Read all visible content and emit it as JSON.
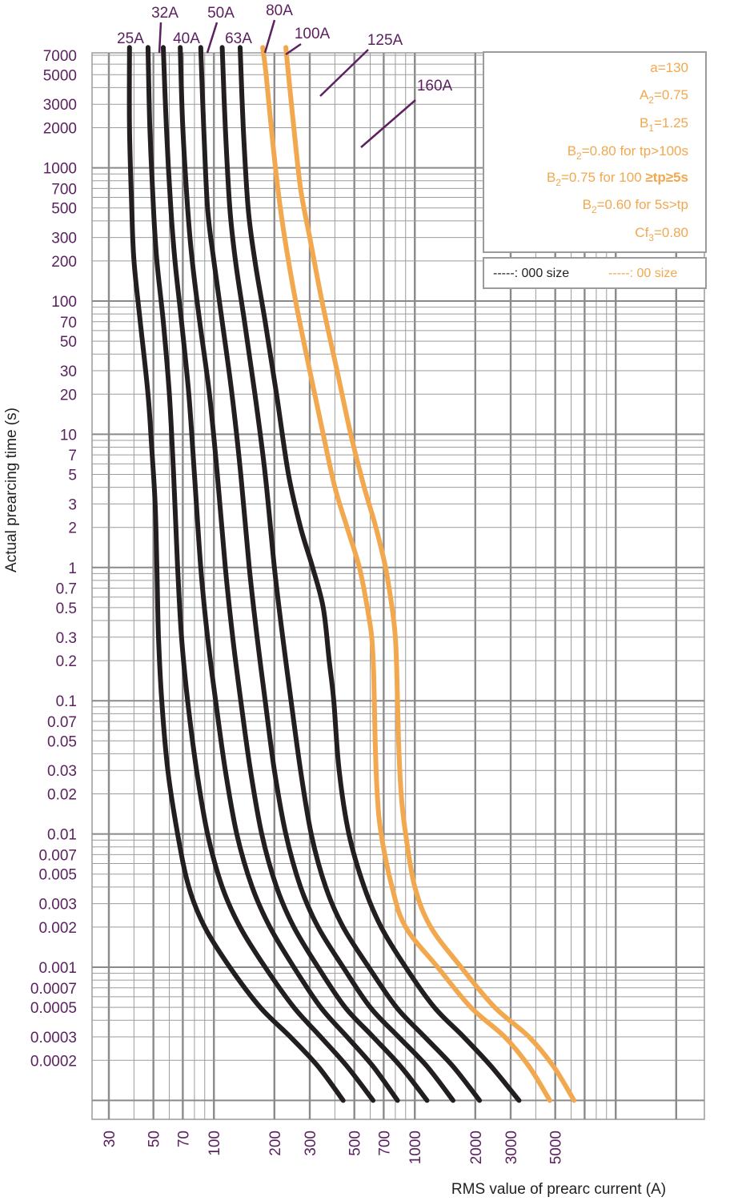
{
  "chart_data": {
    "type": "line",
    "xlabel": "RMS value of prearc current (A)",
    "ylabel": "Actual prearcing time (s)",
    "x_scale": "log",
    "y_scale": "log",
    "xlim": [
      25,
      7000
    ],
    "ylim": [
      0.0001,
      10000
    ],
    "grid": true,
    "x_ticks": [
      {
        "value": 30,
        "label": "30"
      },
      {
        "value": 50,
        "label": "50"
      },
      {
        "value": 70,
        "label": "70"
      },
      {
        "value": 100,
        "label": "100"
      },
      {
        "value": 200,
        "label": "200"
      },
      {
        "value": 300,
        "label": "300"
      },
      {
        "value": 500,
        "label": "500"
      },
      {
        "value": 700,
        "label": "700"
      },
      {
        "value": 1000,
        "label": "1000"
      },
      {
        "value": 2000,
        "label": "2000"
      },
      {
        "value": 3000,
        "label": "3000"
      },
      {
        "value": 5000,
        "label": "5000"
      }
    ],
    "y_ticks": [
      {
        "value": 7000,
        "label": "7000"
      },
      {
        "value": 5000,
        "label": "5000"
      },
      {
        "value": 3000,
        "label": "3000"
      },
      {
        "value": 2000,
        "label": "2000"
      },
      {
        "value": 1000,
        "label": "1000"
      },
      {
        "value": 700,
        "label": "700"
      },
      {
        "value": 500,
        "label": "500"
      },
      {
        "value": 300,
        "label": "300"
      },
      {
        "value": 200,
        "label": "200"
      },
      {
        "value": 100,
        "label": "100"
      },
      {
        "value": 70,
        "label": "70"
      },
      {
        "value": 50,
        "label": "50"
      },
      {
        "value": 30,
        "label": "30"
      },
      {
        "value": 20,
        "label": "20"
      },
      {
        "value": 10,
        "label": "10"
      },
      {
        "value": 7,
        "label": "7"
      },
      {
        "value": 5,
        "label": "5"
      },
      {
        "value": 3,
        "label": "3"
      },
      {
        "value": 2,
        "label": "2"
      },
      {
        "value": 1,
        "label": "1"
      },
      {
        "value": 0.7,
        "label": "0.7"
      },
      {
        "value": 0.5,
        "label": "0.5"
      },
      {
        "value": 0.3,
        "label": "0.3"
      },
      {
        "value": 0.2,
        "label": "0.2"
      },
      {
        "value": 0.1,
        "label": "0.1"
      },
      {
        "value": 0.07,
        "label": "0.07"
      },
      {
        "value": 0.05,
        "label": "0.05"
      },
      {
        "value": 0.03,
        "label": "0.03"
      },
      {
        "value": 0.02,
        "label": "0.02"
      },
      {
        "value": 0.01,
        "label": "0.01"
      },
      {
        "value": 0.007,
        "label": "0.007"
      },
      {
        "value": 0.005,
        "label": "0.005"
      },
      {
        "value": 0.003,
        "label": "0.003"
      },
      {
        "value": 0.002,
        "label": "0.002"
      },
      {
        "value": 0.001,
        "label": "0.001"
      },
      {
        "value": 0.0007,
        "label": "0.0007"
      },
      {
        "value": 0.0005,
        "label": "0.0005"
      },
      {
        "value": 0.0003,
        "label": "0.0003"
      },
      {
        "value": 0.0002,
        "label": "0.0002"
      }
    ],
    "series": [
      {
        "name": "25A",
        "group": "000",
        "color": "#231f20",
        "points": [
          [
            38,
            8000
          ],
          [
            38,
            2000
          ],
          [
            39,
            500
          ],
          [
            40,
            200
          ],
          [
            43,
            70
          ],
          [
            47,
            20
          ],
          [
            49,
            8
          ],
          [
            51,
            3
          ],
          [
            52,
            1
          ],
          [
            53,
            0.3
          ],
          [
            55,
            0.1
          ],
          [
            59,
            0.03
          ],
          [
            66,
            0.01
          ],
          [
            75,
            0.004
          ],
          [
            90,
            0.002
          ],
          [
            120,
            0.001
          ],
          [
            170,
            0.0005
          ],
          [
            240,
            0.0003
          ],
          [
            330,
            0.00018
          ],
          [
            440,
            0.0001
          ]
        ]
      },
      {
        "name": "32A",
        "group": "000",
        "color": "#231f20",
        "points": [
          [
            47,
            8000
          ],
          [
            48,
            2000
          ],
          [
            50,
            500
          ],
          [
            52,
            200
          ],
          [
            56,
            70
          ],
          [
            60,
            20
          ],
          [
            63,
            5
          ],
          [
            66,
            1
          ],
          [
            69,
            0.3
          ],
          [
            74,
            0.1
          ],
          [
            82,
            0.03
          ],
          [
            93,
            0.01
          ],
          [
            110,
            0.004
          ],
          [
            135,
            0.002
          ],
          [
            180,
            0.001
          ],
          [
            250,
            0.0005
          ],
          [
            340,
            0.0003
          ],
          [
            460,
            0.00018
          ],
          [
            620,
            0.0001
          ]
        ]
      },
      {
        "name": "40A",
        "group": "000",
        "color": "#231f20",
        "points": [
          [
            56,
            8000
          ],
          [
            58,
            2000
          ],
          [
            61,
            500
          ],
          [
            64,
            200
          ],
          [
            69,
            70
          ],
          [
            75,
            20
          ],
          [
            80,
            5
          ],
          [
            86,
            1
          ],
          [
            93,
            0.3
          ],
          [
            102,
            0.1
          ],
          [
            114,
            0.03
          ],
          [
            130,
            0.01
          ],
          [
            155,
            0.004
          ],
          [
            190,
            0.002
          ],
          [
            250,
            0.001
          ],
          [
            340,
            0.0005
          ],
          [
            460,
            0.0003
          ],
          [
            620,
            0.00018
          ],
          [
            820,
            0.0001
          ]
        ]
      },
      {
        "name": "50A",
        "group": "000",
        "color": "#231f20",
        "points": [
          [
            68,
            8000
          ],
          [
            70,
            2000
          ],
          [
            74,
            500
          ],
          [
            78,
            200
          ],
          [
            85,
            70
          ],
          [
            95,
            20
          ],
          [
            104,
            5
          ],
          [
            114,
            1
          ],
          [
            124,
            0.3
          ],
          [
            136,
            0.1
          ],
          [
            152,
            0.03
          ],
          [
            173,
            0.01
          ],
          [
            205,
            0.004
          ],
          [
            250,
            0.002
          ],
          [
            330,
            0.001
          ],
          [
            450,
            0.0005
          ],
          [
            620,
            0.0003
          ],
          [
            850,
            0.00018
          ],
          [
            1150,
            0.0001
          ]
        ]
      },
      {
        "name": "63A",
        "group": "000",
        "color": "#231f20",
        "points": [
          [
            86,
            8000
          ],
          [
            89,
            2000
          ],
          [
            93,
            500
          ],
          [
            100,
            200
          ],
          [
            110,
            70
          ],
          [
            123,
            20
          ],
          [
            136,
            5
          ],
          [
            150,
            1
          ],
          [
            164,
            0.3
          ],
          [
            180,
            0.1
          ],
          [
            200,
            0.03
          ],
          [
            228,
            0.01
          ],
          [
            270,
            0.004
          ],
          [
            330,
            0.002
          ],
          [
            440,
            0.001
          ],
          [
            600,
            0.0005
          ],
          [
            830,
            0.0003
          ],
          [
            1150,
            0.00018
          ],
          [
            1550,
            0.0001
          ]
        ]
      },
      {
        "name": "80A",
        "group": "000",
        "color": "#231f20",
        "points": [
          [
            110,
            8000
          ],
          [
            114,
            2000
          ],
          [
            120,
            500
          ],
          [
            128,
            200
          ],
          [
            142,
            70
          ],
          [
            160,
            20
          ],
          [
            180,
            5
          ],
          [
            200,
            1
          ],
          [
            220,
            0.3
          ],
          [
            242,
            0.1
          ],
          [
            270,
            0.03
          ],
          [
            305,
            0.01
          ],
          [
            360,
            0.004
          ],
          [
            440,
            0.002
          ],
          [
            590,
            0.001
          ],
          [
            810,
            0.0005
          ],
          [
            1120,
            0.0003
          ],
          [
            1550,
            0.00018
          ],
          [
            2100,
            0.0001
          ]
        ]
      },
      {
        "name": "100A",
        "group": "000",
        "color": "#231f20",
        "points": [
          [
            135,
            8000
          ],
          [
            140,
            2000
          ],
          [
            148,
            500
          ],
          [
            160,
            200
          ],
          [
            180,
            70
          ],
          [
            205,
            20
          ],
          [
            235,
            5
          ],
          [
            270,
            2
          ],
          [
            310,
            1
          ],
          [
            350,
            0.5
          ],
          [
            375,
            0.2
          ],
          [
            395,
            0.1
          ],
          [
            420,
            0.03
          ],
          [
            470,
            0.01
          ],
          [
            560,
            0.004
          ],
          [
            680,
            0.002
          ],
          [
            900,
            0.001
          ],
          [
            1250,
            0.0005
          ],
          [
            1750,
            0.0003
          ],
          [
            2400,
            0.00018
          ],
          [
            3300,
            0.0001
          ]
        ]
      },
      {
        "name": "125A",
        "group": "00",
        "color": "#f1a84f",
        "points": [
          [
            175,
            8000
          ],
          [
            182,
            5000
          ],
          [
            193,
            2000
          ],
          [
            208,
            700
          ],
          [
            225,
            300
          ],
          [
            255,
            100
          ],
          [
            300,
            30
          ],
          [
            350,
            10
          ],
          [
            400,
            4
          ],
          [
            460,
            2
          ],
          [
            530,
            1
          ],
          [
            580,
            0.5
          ],
          [
            610,
            0.3
          ],
          [
            625,
            0.15
          ],
          [
            635,
            0.05
          ],
          [
            650,
            0.02
          ],
          [
            680,
            0.01
          ],
          [
            770,
            0.004
          ],
          [
            900,
            0.002
          ],
          [
            1300,
            0.001
          ],
          [
            1900,
            0.0005
          ],
          [
            2800,
            0.0003
          ],
          [
            3700,
            0.00018
          ],
          [
            4700,
            0.0001
          ]
        ]
      },
      {
        "name": "160A",
        "group": "00",
        "color": "#f1a84f",
        "points": [
          [
            228,
            8000
          ],
          [
            235,
            5000
          ],
          [
            250,
            2000
          ],
          [
            270,
            700
          ],
          [
            300,
            300
          ],
          [
            345,
            100
          ],
          [
            410,
            30
          ],
          [
            480,
            10
          ],
          [
            560,
            4
          ],
          [
            640,
            2
          ],
          [
            715,
            1
          ],
          [
            770,
            0.5
          ],
          [
            800,
            0.3
          ],
          [
            815,
            0.15
          ],
          [
            830,
            0.05
          ],
          [
            855,
            0.02
          ],
          [
            900,
            0.01
          ],
          [
            1000,
            0.004
          ],
          [
            1200,
            0.002
          ],
          [
            1700,
            0.001
          ],
          [
            2500,
            0.0005
          ],
          [
            3700,
            0.0003
          ],
          [
            4900,
            0.00018
          ],
          [
            6200,
            0.0001
          ]
        ]
      }
    ],
    "parameters_box": [
      {
        "main": "a=130"
      },
      {
        "main": "A",
        "sub": "2",
        "rest": "=0.75"
      },
      {
        "main": "B",
        "sub": "1",
        "rest": "=1.25"
      },
      {
        "main": "B",
        "sub": "2",
        "rest": "=0.80 for tp>100s"
      },
      {
        "main": "B",
        "sub": "2",
        "rest": "=0.75 for 100",
        "extra": "≥tp≥5s"
      },
      {
        "main": "B",
        "sub": "2",
        "rest": "=0.60 for 5s>tp"
      },
      {
        "main": "Cf",
        "sub": "3",
        "rest": "=0.80"
      }
    ],
    "legend": {
      "placement": "top-right",
      "items": [
        {
          "label": "-----: 000 size",
          "color": "#231f20"
        },
        {
          "label": "-----: 00 size",
          "color": "#f1a84f"
        }
      ]
    },
    "colors": {
      "tick_label": "#5b2160",
      "grid": "#9b9b9b",
      "grid_major": "#8a8a8a",
      "size_000": "#231f20",
      "size_00": "#f1a84f",
      "leader": "#5b2160"
    }
  }
}
